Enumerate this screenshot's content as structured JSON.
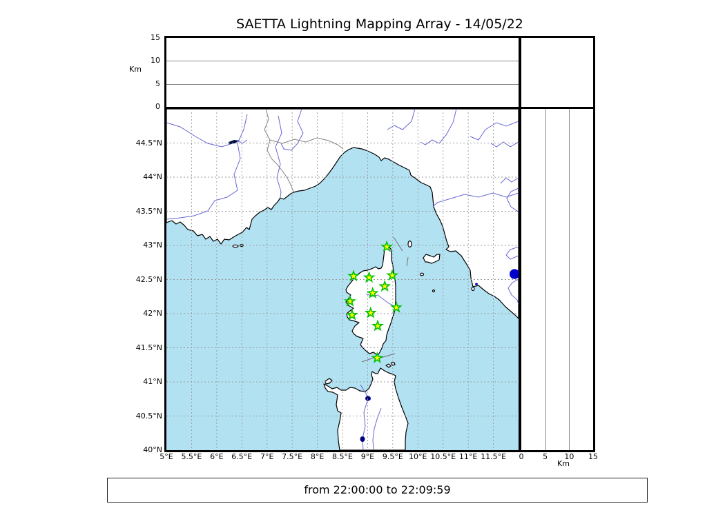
{
  "title": "SAETTA Lightning Mapping Array - 14/05/22",
  "footer": {
    "time_range": "from 22:00:00 to 22:09:59"
  },
  "altitude_panel": {
    "axis_label": "Km",
    "ticks": [
      0,
      5,
      10,
      15
    ],
    "tick_labels": [
      "0",
      "5",
      "10",
      "15"
    ],
    "max_km": 15,
    "gridlines_km": [
      5,
      10
    ]
  },
  "right_panel": {
    "axis_label": "Km",
    "ticks": [
      0,
      5,
      10,
      15
    ],
    "tick_labels": [
      "0",
      "5",
      "10",
      "15"
    ],
    "max_km": 15,
    "gridlines_km": [
      5,
      10
    ]
  },
  "map_panel": {
    "lon_range": [
      5,
      12
    ],
    "lat_range": [
      40,
      45
    ],
    "lon_ticks": [
      {
        "value": 5,
        "label": "5°E"
      },
      {
        "value": 5.5,
        "label": "5.5°E"
      },
      {
        "value": 6,
        "label": "6°E"
      },
      {
        "value": 6.5,
        "label": "6.5°E"
      },
      {
        "value": 7,
        "label": "7°E"
      },
      {
        "value": 7.5,
        "label": "7.5°E"
      },
      {
        "value": 8,
        "label": "8°E"
      },
      {
        "value": 8.5,
        "label": "8.5°E"
      },
      {
        "value": 9,
        "label": "9°E"
      },
      {
        "value": 9.5,
        "label": "9.5°E"
      },
      {
        "value": 10,
        "label": "10°E"
      },
      {
        "value": 10.5,
        "label": "10.5°E"
      },
      {
        "value": 11,
        "label": "11°E"
      },
      {
        "value": 11.5,
        "label": "11.5°E"
      }
    ],
    "lat_ticks": [
      {
        "value": 44.5,
        "label": "44.5°N"
      },
      {
        "value": 44,
        "label": "44°N"
      },
      {
        "value": 43.5,
        "label": "43.5°N"
      },
      {
        "value": 43,
        "label": "43°N"
      },
      {
        "value": 42.5,
        "label": "42.5°N"
      },
      {
        "value": 42,
        "label": "42°N"
      },
      {
        "value": 41.5,
        "label": "41.5°N"
      },
      {
        "value": 41,
        "label": "41°N"
      },
      {
        "value": 40.5,
        "label": "40.5°N"
      },
      {
        "value": 40,
        "label": "40°N"
      }
    ]
  },
  "chart_data": {
    "type": "scatter",
    "title": "SAETTA Lightning Mapping Array - 14/05/22",
    "time_window": "from 22:00:00 to 22:09:59",
    "panels": [
      {
        "name": "altitude-longitude",
        "ylabel": "Km",
        "ylim": [
          0,
          15
        ],
        "yticks": [
          0,
          5,
          10,
          15
        ],
        "xlim": [
          5,
          12
        ],
        "points": []
      },
      {
        "name": "map",
        "xlim": [
          5,
          12
        ],
        "ylim": [
          40,
          45
        ],
        "grid": "dashed every 0.5 deg"
      },
      {
        "name": "altitude-latitude",
        "xlabel": "Km",
        "xlim": [
          0,
          15
        ],
        "xticks": [
          0,
          5,
          10,
          15
        ],
        "ylim": [
          40,
          45
        ],
        "points": []
      },
      {
        "name": "altitude-histogram",
        "points": []
      }
    ],
    "stations": [
      {
        "lon": 9.38,
        "lat": 42.98
      },
      {
        "lon": 8.72,
        "lat": 42.55
      },
      {
        "lon": 9.03,
        "lat": 42.53
      },
      {
        "lon": 9.49,
        "lat": 42.56
      },
      {
        "lon": 9.34,
        "lat": 42.4
      },
      {
        "lon": 9.1,
        "lat": 42.3
      },
      {
        "lon": 8.65,
        "lat": 42.18
      },
      {
        "lon": 9.57,
        "lat": 42.09
      },
      {
        "lon": 9.06,
        "lat": 42.01
      },
      {
        "lon": 8.69,
        "lat": 41.98
      },
      {
        "lon": 9.2,
        "lat": 41.82
      },
      {
        "lon": 9.19,
        "lat": 41.35
      }
    ],
    "sources": [
      {
        "lon": 11.92,
        "lat": 42.58
      }
    ],
    "legend": {
      "station_marker": "green-yellow star",
      "source_marker": "blue filled circle"
    }
  },
  "colors": {
    "sea": "#b2e2f2",
    "land": "#ffffff",
    "coast": "#000000",
    "river": "#6565d6",
    "lake": "#000080",
    "grid": "#999999",
    "admin_border": "#808080",
    "station_fill": "#ffff00",
    "station_edge": "#00c000",
    "source_fill": "#0000cc"
  }
}
